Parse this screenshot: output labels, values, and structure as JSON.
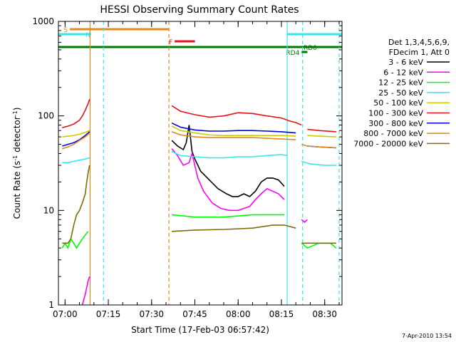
{
  "chart_data": {
    "type": "line",
    "title": "HESSI Observing Summary Count Rates",
    "xlabel": "Start Time (17-Feb-03 06:57:42)",
    "ylabel": "Count Rate (s",
    "ylabel_sup": "-1",
    "ylabel_tail": " detector",
    "ylabel_sup2": "-1",
    "ylabel_close": ")",
    "y_scale": "log",
    "xlim": [
      "06:57:42",
      "08:36:00"
    ],
    "ylim": [
      1,
      1000
    ],
    "x_ticks": [
      "07:00",
      "07:15",
      "07:30",
      "07:45",
      "08:00",
      "08:15",
      "08:30"
    ],
    "y_tick_labels": [
      "1",
      "10",
      "100",
      "1000"
    ],
    "footer_date": "7-Apr-2010 13:54",
    "legend": {
      "header1": "Det 1,3,4,5,6,9,",
      "header2": "FDecim 1, Att 0",
      "placement": "right"
    },
    "flags": [
      {
        "label": "S",
        "start": "07:01:40",
        "end": "07:36:00",
        "color": "#e08a1e"
      },
      {
        "label": "N",
        "start": "06:57:42",
        "end": "07:09:00",
        "color": "#34e6ee"
      },
      {
        "label": "N",
        "start": "08:17:00",
        "end": "08:36:00",
        "color": "#34e6ee"
      },
      {
        "label": "F",
        "start": "07:38:00",
        "end": "07:45:00",
        "color": "#e0141e"
      },
      {
        "label": "RD0",
        "start": "06:57:42",
        "end": "08:36:00",
        "color": "#007800"
      },
      {
        "label": "RD4",
        "start": "08:22:00",
        "end": "08:24:00",
        "color": "#007800"
      }
    ],
    "vertical_markers": [
      {
        "time": "07:08:40",
        "color": "#e08a1e",
        "style": "solid"
      },
      {
        "time": "07:13:20",
        "color": "#34e6ee",
        "style": "dashed"
      },
      {
        "time": "07:36:00",
        "color": "#e08a1e",
        "style": "dashed"
      },
      {
        "time": "08:17:00",
        "color": "#34e6ee",
        "style": "solid"
      },
      {
        "time": "08:22:20",
        "color": "#34e6ee",
        "style": "dashed"
      },
      {
        "time": "08:35:00",
        "color": "#34e6ee",
        "style": "dashed"
      }
    ],
    "series": [
      {
        "name": "3 - 6 keV",
        "color": "#000000",
        "segments": [
          {
            "t": [
              "07:37:00",
              "07:39:00",
              "07:41:00",
              "07:42:00",
              "07:43:00",
              "07:44:00",
              "07:45:00",
              "07:47:00",
              "07:50:00",
              "07:53:00",
              "07:56:00",
              "07:58:00",
              "08:00:00",
              "08:02:00",
              "08:04:00",
              "08:06:00",
              "08:08:00",
              "08:10:00",
              "08:12:00",
              "08:14:00",
              "08:16:00"
            ],
            "v": [
              55,
              48,
              44,
              52,
              80,
              42,
              35,
              26,
              21,
              17,
              15,
              14,
              14,
              15,
              14,
              16,
              20,
              22,
              22,
              21,
              18
            ]
          }
        ]
      },
      {
        "name": "6 - 12 keV",
        "color": "#ff00ff",
        "segments": [
          {
            "t": [
              "07:06:00",
              "07:07:00",
              "07:08:00",
              "07:08:30"
            ],
            "v": [
              1,
              1.3,
              1.8,
              2
            ]
          },
          {
            "t": [
              "07:37:00",
              "07:39:00",
              "07:41:00",
              "07:43:00",
              "07:44:00",
              "07:46:00",
              "07:48:00",
              "07:51:00",
              "07:54:00",
              "07:57:00",
              "08:00:00",
              "08:02:00",
              "08:04:00",
              "08:06:00",
              "08:08:00",
              "08:10:00",
              "08:12:00",
              "08:14:00",
              "08:16:00"
            ],
            "v": [
              45,
              38,
              30,
              32,
              40,
              22,
              16,
              12,
              10.5,
              10,
              10,
              10.5,
              11,
              13,
              15,
              17,
              16,
              15,
              13
            ]
          },
          {
            "t": [
              "08:22:00",
              "08:23:00",
              "08:24:00"
            ],
            "v": [
              8,
              7.5,
              8
            ]
          }
        ]
      },
      {
        "name": "12 - 25 keV",
        "color": "#00ff00",
        "segments": [
          {
            "t": [
              "06:59:00",
              "07:00:00",
              "07:01:00",
              "07:02:00",
              "07:03:00",
              "07:04:00",
              "07:05:00",
              "07:06:00",
              "07:07:00",
              "07:08:00"
            ],
            "v": [
              4,
              4.5,
              4,
              5,
              4.5,
              4,
              4.5,
              5,
              5.5,
              6
            ]
          },
          {
            "t": [
              "07:37:00",
              "07:45:00",
              "07:55:00",
              "08:05:00",
              "08:14:00",
              "08:16:00"
            ],
            "v": [
              9,
              8.5,
              8.5,
              9,
              9,
              9
            ]
          },
          {
            "t": [
              "08:22:00",
              "08:24:00",
              "08:28:00",
              "08:32:00",
              "08:34:00"
            ],
            "v": [
              4.5,
              4,
              4.5,
              4.5,
              4
            ]
          }
        ]
      },
      {
        "name": "25 - 50 keV",
        "color": "#34e6ee",
        "segments": [
          {
            "t": [
              "06:59:00",
              "07:01:00",
              "07:03:00",
              "07:05:00",
              "07:07:00",
              "07:08:30"
            ],
            "v": [
              32,
              32,
              33,
              34,
              35,
              36
            ]
          },
          {
            "t": [
              "07:37:00",
              "07:40:00",
              "07:45:00",
              "07:50:00",
              "07:55:00",
              "08:00:00",
              "08:05:00",
              "08:10:00",
              "08:15:00",
              "08:17:00"
            ],
            "v": [
              42,
              38,
              37,
              36,
              36,
              37,
              37,
              38,
              39,
              38
            ]
          },
          {
            "t": [
              "08:22:00",
              "08:25:00",
              "08:30:00",
              "08:34:00"
            ],
            "v": [
              33,
              31,
              30,
              30
            ]
          }
        ]
      },
      {
        "name": "50 - 100 keV",
        "color": "#cccc00",
        "segments": [
          {
            "t": [
              "06:59:00",
              "07:01:00",
              "07:03:00",
              "07:05:00",
              "07:07:00",
              "07:08:30"
            ],
            "v": [
              60,
              61,
              62,
              64,
              67,
              70
            ]
          },
          {
            "t": [
              "07:37:00",
              "07:40:00",
              "07:45:00",
              "07:50:00",
              "07:55:00",
              "08:00:00",
              "08:05:00",
              "08:10:00",
              "08:15:00",
              "08:20:00"
            ],
            "v": [
              78,
              70,
              66,
              63,
              62,
              62,
              62,
              62,
              62,
              61
            ]
          },
          {
            "t": [
              "08:24:00",
              "08:28:00",
              "08:34:00"
            ],
            "v": [
              62,
              61,
              60
            ]
          }
        ]
      },
      {
        "name": "100 - 300 keV",
        "color": "#e0141e",
        "segments": [
          {
            "t": [
              "06:59:00",
              "07:01:00",
              "07:03:00",
              "07:05:00",
              "07:06:00",
              "07:07:00",
              "07:08:00",
              "07:08:30"
            ],
            "v": [
              75,
              78,
              82,
              90,
              100,
              115,
              135,
              150
            ]
          },
          {
            "t": [
              "07:37:00",
              "07:40:00",
              "07:45:00",
              "07:50:00",
              "07:55:00",
              "08:00:00",
              "08:05:00",
              "08:10:00",
              "08:15:00",
              "08:18:00",
              "08:20:00",
              "08:22:00"
            ],
            "v": [
              128,
              112,
              103,
              97,
              100,
              108,
              106,
              100,
              95,
              88,
              85,
              80
            ]
          },
          {
            "t": [
              "08:24:00",
              "08:28:00",
              "08:34:00"
            ],
            "v": [
              72,
              70,
              68
            ]
          }
        ]
      },
      {
        "name": "300 - 800 keV",
        "color": "#0000e0",
        "segments": [
          {
            "t": [
              "06:59:00",
              "07:01:00",
              "07:03:00",
              "07:05:00",
              "07:07:00",
              "07:08:30"
            ],
            "v": [
              48,
              50,
              52,
              56,
              62,
              68
            ]
          },
          {
            "t": [
              "07:37:00",
              "07:40:00",
              "07:45:00",
              "07:50:00",
              "07:55:00",
              "08:00:00",
              "08:05:00",
              "08:10:00",
              "08:15:00",
              "08:20:00"
            ],
            "v": [
              84,
              76,
              71,
              69,
              69,
              70,
              70,
              69,
              68,
              66
            ]
          },
          {
            "t": [
              "08:24:00",
              "08:28:00",
              "08:34:00"
            ],
            "v": [
              48,
              47,
              46
            ]
          }
        ]
      },
      {
        "name": "800 - 7000 keV",
        "color": "#e08a1e",
        "segments": [
          {
            "t": [
              "06:59:00",
              "07:01:00",
              "07:03:00",
              "07:05:00",
              "07:07:00",
              "07:08:30"
            ],
            "v": [
              45,
              47,
              50,
              55,
              60,
              66
            ]
          },
          {
            "t": [
              "07:37:00",
              "07:40:00",
              "07:45:00",
              "07:50:00",
              "07:55:00",
              "08:00:00",
              "08:05:00",
              "08:10:00",
              "08:15:00",
              "08:20:00"
            ],
            "v": [
              68,
              63,
              60,
              59,
              59,
              59,
              59,
              58,
              57,
              56
            ]
          },
          {
            "t": [
              "08:22:00",
              "08:24:00",
              "08:28:00",
              "08:34:00"
            ],
            "v": [
              50,
              48,
              47,
              46
            ]
          }
        ]
      },
      {
        "name": "7000 - 20000 keV",
        "color": "#7d6e0a",
        "segments": [
          {
            "t": [
              "06:59:00",
              "07:01:00",
              "07:02:00",
              "07:03:00",
              "07:04:00",
              "07:05:00",
              "07:06:00",
              "07:07:00",
              "07:07:30",
              "07:08:00",
              "07:08:30"
            ],
            "v": [
              4.5,
              4.5,
              5,
              7,
              9,
              10,
              12,
              15,
              20,
              25,
              30
            ]
          },
          {
            "t": [
              "07:37:00",
              "07:45:00",
              "07:55:00",
              "08:05:00",
              "08:12:00",
              "08:16:00",
              "08:20:00"
            ],
            "v": [
              6,
              6.2,
              6.3,
              6.5,
              7,
              7,
              6.5
            ]
          },
          {
            "t": [
              "08:22:00",
              "08:24:00",
              "08:28:00",
              "08:34:00"
            ],
            "v": [
              4.5,
              4.5,
              4.5,
              4.5
            ]
          }
        ]
      }
    ]
  }
}
